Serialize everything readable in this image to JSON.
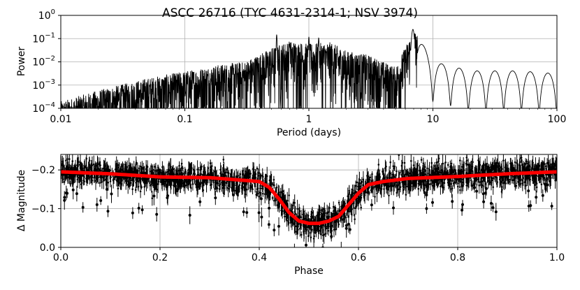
{
  "title": "ASCC 26716  (TYC 4631-2314-1; NSV 3974)",
  "chart_data": [
    {
      "type": "line",
      "subplot": "periodogram",
      "xscale": "log",
      "yscale": "log",
      "xlabel": "Period (days)",
      "ylabel": "Power",
      "xlim": [
        0.01,
        100
      ],
      "ylim": [
        0.0001,
        1
      ],
      "grid": true,
      "xticks": [
        {
          "value": 0.01,
          "label": "0.01"
        },
        {
          "value": 0.1,
          "label": "0.1"
        },
        {
          "value": 1,
          "label": "1"
        },
        {
          "value": 10,
          "label": "10"
        },
        {
          "value": 100,
          "label": "100"
        }
      ],
      "yticks": [
        {
          "value": 0.0001,
          "base": "10",
          "exp": "−4"
        },
        {
          "value": 0.001,
          "base": "10",
          "exp": "−3"
        },
        {
          "value": 0.01,
          "base": "10",
          "exp": "−2"
        },
        {
          "value": 0.1,
          "base": "10",
          "exp": "−1"
        },
        {
          "value": 1,
          "base": "10",
          "exp": "0"
        }
      ],
      "series": [
        {
          "name": "power spectrum",
          "color": "#000000",
          "envelope": {
            "period": [
              0.01,
              0.02,
              0.05,
              0.1,
              0.2,
              0.3,
              0.5,
              0.7,
              1.0,
              1.5,
              2.0,
              3.0,
              5.0,
              7.0,
              10.0,
              20.0,
              50.0,
              100.0
            ],
            "max_power": [
              0.0002,
              0.0006,
              0.002,
              0.004,
              0.008,
              0.01,
              0.04,
              0.08,
              0.06,
              0.07,
              0.03,
              0.02,
              0.006,
              0.25,
              0.01,
              0.004,
              0.004,
              0.003
            ]
          },
          "dominant_peak": {
            "period": 6.9,
            "power": 0.25
          },
          "secondary_peaks": [
            {
              "period": 0.55,
              "power": 0.15
            },
            {
              "period": 0.7,
              "power": 0.06
            },
            {
              "period": 1.0,
              "power": 0.12
            },
            {
              "period": 1.2,
              "power": 0.11
            }
          ]
        }
      ]
    },
    {
      "type": "scatter",
      "subplot": "phase-folded light curve",
      "xlabel": "Phase",
      "ylabel": "Δ Magnitude",
      "xlim": [
        0.0,
        1.0
      ],
      "ylim": [
        0.0,
        -0.24
      ],
      "y_inverted": true,
      "grid": true,
      "xticks": [
        "0.0",
        "0.2",
        "0.4",
        "0.6",
        "0.8",
        "1.0"
      ],
      "yticks": [
        {
          "value": -0.2,
          "label": "−0.2"
        },
        {
          "value": -0.1,
          "label": "−0.1"
        },
        {
          "value": 0.0,
          "label": "0.0"
        }
      ],
      "series": [
        {
          "name": "observations",
          "color": "#000000",
          "marker": "point with error bars",
          "scatter_spread_mag": 0.035
        },
        {
          "name": "binned model",
          "color": "#ff0000",
          "phase": [
            0.0,
            0.1,
            0.2,
            0.3,
            0.35,
            0.4,
            0.42,
            0.44,
            0.46,
            0.48,
            0.5,
            0.52,
            0.54,
            0.56,
            0.58,
            0.6,
            0.62,
            0.65,
            0.7,
            0.8,
            0.9,
            1.0
          ],
          "delta_mag": [
            -0.195,
            -0.19,
            -0.182,
            -0.18,
            -0.175,
            -0.17,
            -0.155,
            -0.125,
            -0.09,
            -0.068,
            -0.062,
            -0.062,
            -0.068,
            -0.08,
            -0.11,
            -0.14,
            -0.162,
            -0.17,
            -0.178,
            -0.183,
            -0.19,
            -0.195
          ]
        }
      ]
    }
  ]
}
